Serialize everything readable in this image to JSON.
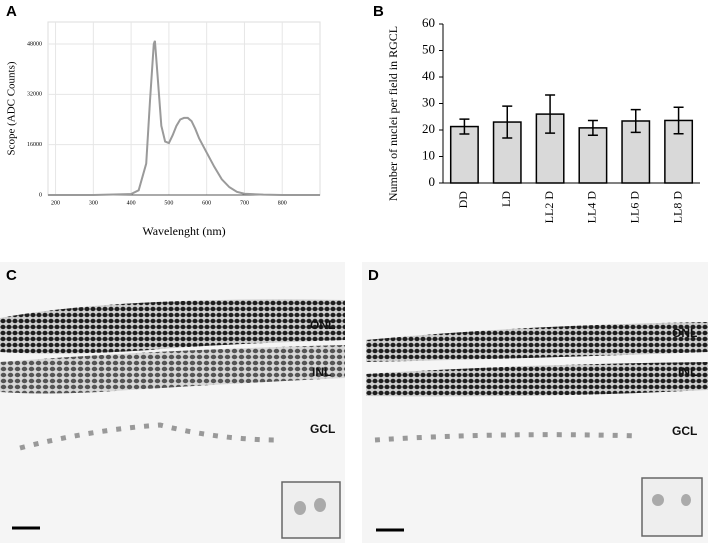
{
  "chart_data": [
    {
      "type": "line",
      "panel_label": "A",
      "xlabel": "Wavelenght (nm)",
      "ylabel": "Scope (ADC Counts)",
      "x": [
        180,
        300,
        400,
        420,
        440,
        450,
        460,
        463,
        470,
        480,
        490,
        500,
        510,
        520,
        530,
        540,
        550,
        560,
        570,
        580,
        600,
        620,
        640,
        660,
        680,
        700,
        750,
        800,
        900
      ],
      "values": [
        0,
        0,
        300,
        1500,
        10000,
        30000,
        48000,
        49000,
        38000,
        22000,
        17000,
        16500,
        19000,
        22000,
        24000,
        24500,
        24500,
        23500,
        21000,
        18000,
        13500,
        9000,
        5000,
        2500,
        1000,
        400,
        100,
        0,
        0
      ],
      "color": "#9a9a9a",
      "xlim": [
        180,
        900
      ],
      "xticks": [
        200,
        300,
        400,
        500,
        600,
        700,
        800
      ],
      "ylim": [
        0,
        55000
      ],
      "yticks": [
        0,
        16000,
        32000,
        48000
      ],
      "grid": true
    },
    {
      "type": "bar",
      "panel_label": "B",
      "ylabel": "Number of nuclei per field in RGCL",
      "categories": [
        "DD",
        "LD",
        "LL2 D",
        "LL4 D",
        "LL6 D",
        "LL8 D"
      ],
      "values": [
        21.3,
        23,
        26,
        20.8,
        23.4,
        23.6
      ],
      "errors": [
        2.8,
        6,
        7.2,
        2.8,
        4.3,
        5
      ],
      "color": "#d9d9d9",
      "ylim": [
        0,
        60
      ],
      "yticks": [
        0,
        10,
        20,
        30,
        40,
        50,
        60
      ],
      "grid": false
    }
  ],
  "micrographs": [
    {
      "panel_label": "C",
      "layers": [
        "ONL",
        "INL",
        "GCL"
      ]
    },
    {
      "panel_label": "D",
      "layers": [
        "ONL",
        "INL",
        "GCL"
      ]
    }
  ]
}
